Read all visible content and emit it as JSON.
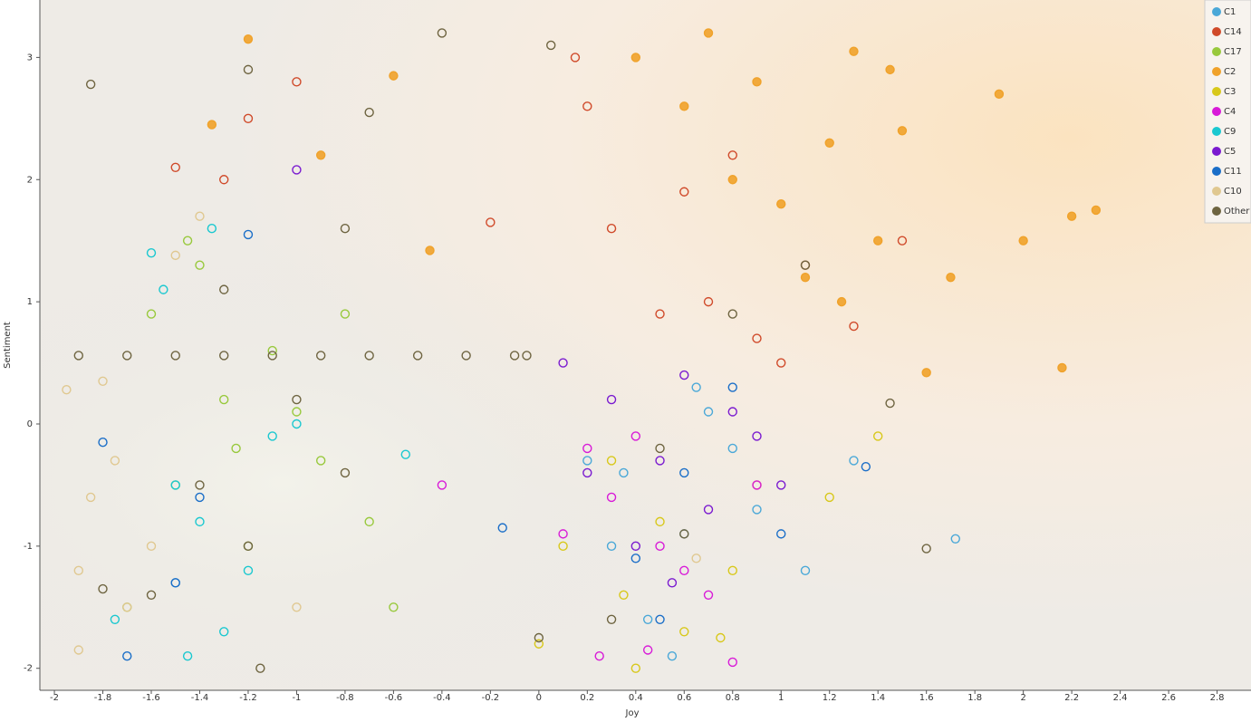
{
  "chart_data": {
    "type": "scatter",
    "x_label": "Joy",
    "y_label": "Sentiment",
    "xlim": [
      -2.06,
      2.94
    ],
    "ylim": [
      -2.18,
      3.47
    ],
    "xticks": [
      -2,
      -1.8,
      -1.6,
      -1.4,
      -1.2,
      -1,
      -0.8,
      -0.6,
      -0.4,
      -0.2,
      0,
      0.2,
      0.4,
      0.6,
      0.8,
      1,
      1.2,
      1.4,
      1.6,
      1.8,
      2,
      2.2,
      2.4,
      2.6,
      2.8
    ],
    "yticks": [
      -2,
      -1,
      0,
      1,
      2,
      3
    ],
    "legend": "top-right",
    "series": [
      {
        "name": "C1",
        "color": "#4aa8d8",
        "filled": false,
        "x": [
          0.35,
          0.6,
          0.8,
          0.45,
          0.9,
          0.2,
          0.7,
          1.1,
          0.55,
          1.3,
          0.3,
          1.72,
          0.65,
          -1.5
        ],
        "values": [
          -0.4,
          -0.9,
          -0.2,
          -1.6,
          -0.7,
          -0.3,
          0.1,
          -1.2,
          -1.9,
          -0.3,
          -1.0,
          -0.94,
          0.3,
          -1.3
        ]
      },
      {
        "name": "C14",
        "color": "#d04a2a",
        "filled": false,
        "x": [
          0.7,
          0.9,
          1.1,
          0.5,
          0.3,
          1.3,
          0.8,
          0.2,
          1.0,
          0.6,
          -1.2,
          -1.5,
          -1.0,
          -1.3,
          -0.2,
          0.15,
          1.5
        ],
        "values": [
          1.0,
          0.7,
          1.3,
          0.9,
          1.6,
          0.8,
          2.2,
          2.6,
          0.5,
          1.9,
          2.5,
          2.1,
          2.8,
          2.0,
          1.65,
          3.0,
          1.5
        ]
      },
      {
        "name": "C17",
        "color": "#98c93c",
        "filled": false,
        "x": [
          -1.3,
          -1.5,
          -1.1,
          -1.2,
          -1.6,
          -0.9,
          -1.4,
          -1.0,
          -0.7,
          -1.7,
          -1.25,
          -1.45,
          -0.6,
          -0.8
        ],
        "values": [
          0.2,
          -0.5,
          0.6,
          -1.0,
          0.9,
          -0.3,
          1.3,
          0.1,
          -0.8,
          -1.5,
          -0.2,
          1.5,
          -1.5,
          0.9
        ]
      },
      {
        "name": "C2",
        "color": "#f0a22a",
        "filled": true,
        "x": [
          1.0,
          1.2,
          0.9,
          1.4,
          0.6,
          1.1,
          1.3,
          0.8,
          1.5,
          1.7,
          2.0,
          2.2,
          2.3,
          2.16,
          1.9,
          -1.2,
          -1.35,
          -0.9,
          -0.45,
          -0.6,
          0.4,
          1.25,
          0.7,
          1.6,
          1.45
        ],
        "values": [
          1.8,
          2.3,
          2.8,
          1.5,
          2.6,
          1.2,
          3.05,
          2.0,
          2.4,
          1.2,
          1.5,
          1.7,
          1.75,
          0.46,
          2.7,
          3.15,
          2.45,
          2.2,
          1.42,
          2.85,
          3.0,
          1.0,
          3.2,
          0.42,
          2.9
        ]
      },
      {
        "name": "C3",
        "color": "#d8c81a",
        "filled": false,
        "x": [
          0.5,
          0.8,
          0.3,
          0.6,
          0.1,
          0.9,
          0.4,
          1.4,
          0.35,
          0.75,
          0.0,
          1.2
        ],
        "values": [
          -0.8,
          -1.2,
          -0.3,
          -1.7,
          -1.0,
          -0.5,
          -2.0,
          -0.1,
          -1.4,
          -1.75,
          -1.8,
          -0.6
        ]
      },
      {
        "name": "C4",
        "color": "#d81ad8",
        "filled": false,
        "x": [
          0.3,
          0.5,
          0.2,
          0.7,
          0.1,
          0.4,
          0.9,
          0.25,
          0.6,
          -0.4,
          0.45,
          0.8
        ],
        "values": [
          -0.6,
          -1.0,
          -0.2,
          -1.4,
          -0.9,
          -0.1,
          -0.5,
          -1.9,
          -1.2,
          -0.5,
          -1.85,
          -1.95
        ]
      },
      {
        "name": "C9",
        "color": "#1ac8d0",
        "filled": false,
        "x": [
          -1.4,
          -1.2,
          -1.5,
          -1.6,
          -1.3,
          -1.1,
          -1.45,
          -1.75,
          -1.0,
          -0.55,
          -1.35,
          -1.55
        ],
        "values": [
          -0.8,
          -1.2,
          -0.5,
          1.4,
          -1.7,
          -0.1,
          -1.9,
          -1.6,
          0.0,
          -0.25,
          1.6,
          1.1
        ]
      },
      {
        "name": "C5",
        "color": "#7a1ad0",
        "filled": false,
        "x": [
          0.5,
          0.3,
          0.7,
          0.9,
          0.4,
          0.6,
          1.0,
          0.2,
          0.8,
          0.55,
          -1.0,
          0.1
        ],
        "values": [
          -0.3,
          0.2,
          -0.7,
          -0.1,
          -1.0,
          0.4,
          -0.5,
          -0.4,
          0.1,
          -1.3,
          2.08,
          0.5
        ]
      },
      {
        "name": "C11",
        "color": "#1a6ec8",
        "filled": false,
        "x": [
          0.6,
          0.4,
          0.8,
          1.0,
          -1.5,
          -1.4,
          -1.7,
          -1.2,
          0.5,
          -1.8,
          -0.15,
          1.35
        ],
        "values": [
          -0.4,
          -1.1,
          0.3,
          -0.9,
          -1.3,
          -0.6,
          -1.9,
          1.55,
          -1.6,
          -0.15,
          -0.85,
          -0.35
        ]
      },
      {
        "name": "C10",
        "color": "#e0c890",
        "filled": false,
        "x": [
          -1.9,
          -1.85,
          -1.7,
          -1.95,
          -1.6,
          -1.8,
          -1.0,
          -1.4,
          0.65,
          -1.5,
          -1.9,
          -1.75
        ],
        "values": [
          -1.2,
          -0.6,
          -1.5,
          0.28,
          -1.0,
          0.35,
          -1.5,
          1.7,
          -1.1,
          1.38,
          -1.85,
          -0.3
        ]
      },
      {
        "name": "Other",
        "color": "#6e6440",
        "filled": false,
        "x": [
          -1.9,
          -1.7,
          -1.5,
          -1.3,
          -1.1,
          -0.9,
          -0.7,
          -0.5,
          -0.3,
          -0.1,
          -0.05,
          -1.4,
          -1.2,
          -1.6,
          -1.0,
          -1.3,
          -0.8,
          -1.85,
          -1.2,
          -0.4,
          0.5,
          0.8,
          1.1,
          0.3,
          0.6,
          0.0,
          1.6,
          -0.8,
          0.05,
          -1.8,
          -1.15,
          -0.7,
          1.45
        ],
        "values": [
          0.56,
          0.56,
          0.56,
          0.56,
          0.56,
          0.56,
          0.56,
          0.56,
          0.56,
          0.56,
          0.56,
          -0.5,
          -1.0,
          -1.4,
          0.2,
          1.1,
          -0.4,
          2.78,
          2.9,
          3.2,
          -0.2,
          0.9,
          1.3,
          -1.6,
          -0.9,
          -1.75,
          -1.02,
          1.6,
          3.1,
          -1.35,
          -2.0,
          2.55,
          0.17
        ]
      }
    ]
  }
}
